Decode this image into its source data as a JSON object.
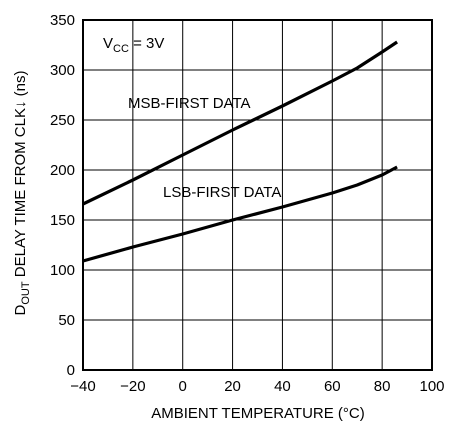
{
  "chart_data": {
    "type": "line",
    "xlabel": "AMBIENT TEMPERATURE (°C)",
    "ylabel": {
      "prefix": "D",
      "prefix_sub": "OUT",
      "rest": " DELAY TIME FROM CLK↓ (ns)"
    },
    "xlim": [
      -40,
      100
    ],
    "ylim": [
      0,
      350
    ],
    "x_ticks": [
      -40,
      -20,
      0,
      20,
      40,
      60,
      80,
      100
    ],
    "x_tick_labels": [
      "−40",
      "−20",
      "0",
      "20",
      "40",
      "60",
      "80",
      "100"
    ],
    "y_ticks": [
      0,
      50,
      100,
      150,
      200,
      250,
      300,
      350
    ],
    "y_tick_labels": [
      "0",
      "50",
      "100",
      "150",
      "200",
      "250",
      "300",
      "350"
    ],
    "grid": true,
    "annotations": {
      "condition": {
        "main": "V",
        "sub": "CC",
        "rest": " = 3V"
      }
    },
    "series": [
      {
        "name": "MSB-FIRST DATA",
        "color": "#000000",
        "points": [
          [
            -40,
            166
          ],
          [
            -20,
            190
          ],
          [
            0,
            215
          ],
          [
            20,
            240
          ],
          [
            40,
            264
          ],
          [
            60,
            289
          ],
          [
            70,
            302
          ],
          [
            80,
            318
          ],
          [
            86,
            328
          ]
        ]
      },
      {
        "name": "LSB-FIRST DATA",
        "color": "#000000",
        "points": [
          [
            -40,
            109
          ],
          [
            -20,
            123
          ],
          [
            0,
            136
          ],
          [
            20,
            150
          ],
          [
            40,
            163
          ],
          [
            60,
            177
          ],
          [
            70,
            185
          ],
          [
            80,
            195
          ],
          [
            86,
            203
          ]
        ]
      }
    ]
  }
}
